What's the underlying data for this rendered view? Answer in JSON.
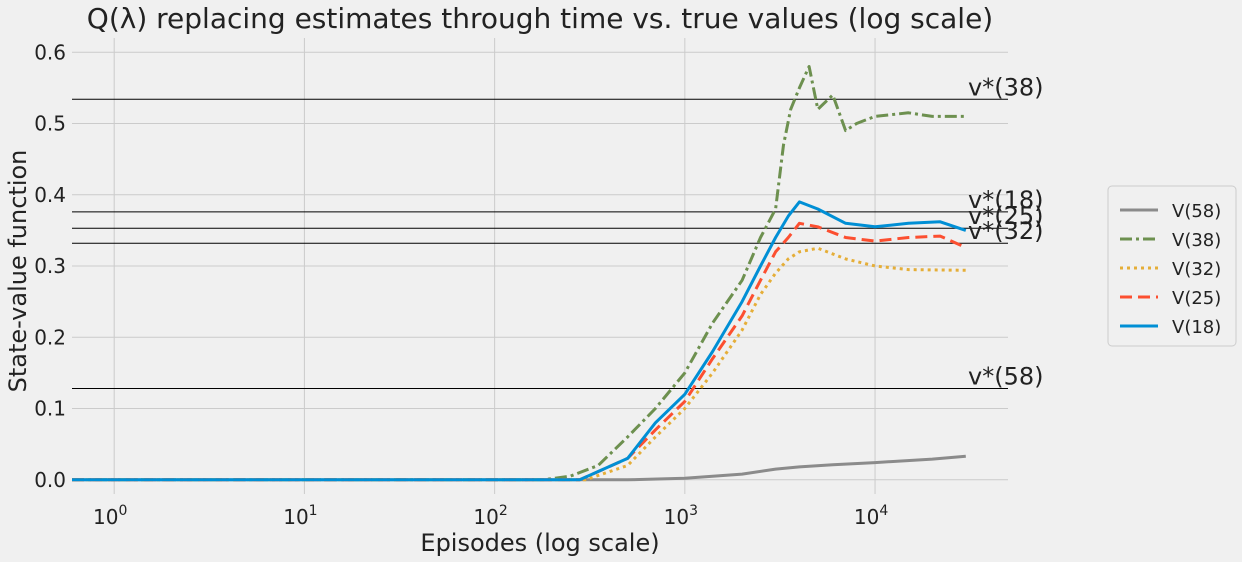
{
  "chart_data": {
    "type": "line",
    "title": "Q(λ) replacing estimates through time vs. true values (log scale)",
    "xlabel": "Episodes (log scale)",
    "ylabel": "State-value function",
    "xscale": "log",
    "xlim": [
      0.6,
      50000
    ],
    "ylim": [
      -0.02,
      0.62
    ],
    "grid": true,
    "legend_position": "right",
    "x_ticks": [
      {
        "base": "10",
        "exp": "0",
        "value": 1
      },
      {
        "base": "10",
        "exp": "1",
        "value": 10
      },
      {
        "base": "10",
        "exp": "2",
        "value": 100
      },
      {
        "base": "10",
        "exp": "3",
        "value": 1000
      },
      {
        "base": "10",
        "exp": "4",
        "value": 10000
      }
    ],
    "y_ticks": [
      "0.0",
      "0.1",
      "0.2",
      "0.3",
      "0.4",
      "0.5",
      "0.6"
    ],
    "reference_lines": [
      {
        "label": "v*(38)",
        "value": 0.534
      },
      {
        "label": "v*(18)",
        "value": 0.376
      },
      {
        "label": "v*(25)",
        "value": 0.353
      },
      {
        "label": "v*(32)",
        "value": 0.332
      },
      {
        "label": "v*(58)",
        "value": 0.128
      }
    ],
    "series": [
      {
        "name": "V(58)",
        "color": "#8b8b8b",
        "dash": "solid",
        "points": [
          [
            0.6,
            0
          ],
          [
            100,
            0
          ],
          [
            500,
            0
          ],
          [
            1000,
            0.002
          ],
          [
            2000,
            0.008
          ],
          [
            3000,
            0.015
          ],
          [
            4000,
            0.018
          ],
          [
            6000,
            0.021
          ],
          [
            10000,
            0.024
          ],
          [
            20000,
            0.029
          ],
          [
            30000,
            0.033
          ]
        ]
      },
      {
        "name": "V(38)",
        "color": "#6d904f",
        "dash": "dashdot",
        "points": [
          [
            0.6,
            0
          ],
          [
            180,
            0
          ],
          [
            250,
            0.005
          ],
          [
            350,
            0.02
          ],
          [
            500,
            0.06
          ],
          [
            700,
            0.1
          ],
          [
            1000,
            0.15
          ],
          [
            1400,
            0.22
          ],
          [
            2000,
            0.28
          ],
          [
            2500,
            0.34
          ],
          [
            3000,
            0.38
          ],
          [
            3300,
            0.47
          ],
          [
            3600,
            0.52
          ],
          [
            4000,
            0.55
          ],
          [
            4500,
            0.58
          ],
          [
            5000,
            0.52
          ],
          [
            6000,
            0.54
          ],
          [
            7000,
            0.49
          ],
          [
            8000,
            0.5
          ],
          [
            10000,
            0.51
          ],
          [
            15000,
            0.515
          ],
          [
            20000,
            0.51
          ],
          [
            30000,
            0.51
          ]
        ]
      },
      {
        "name": "V(32)",
        "color": "#e5ae38",
        "dash": "dotted",
        "points": [
          [
            0.6,
            0
          ],
          [
            300,
            0
          ],
          [
            500,
            0.02
          ],
          [
            700,
            0.06
          ],
          [
            1000,
            0.1
          ],
          [
            1400,
            0.15
          ],
          [
            2000,
            0.21
          ],
          [
            2500,
            0.26
          ],
          [
            3000,
            0.29
          ],
          [
            3500,
            0.31
          ],
          [
            4000,
            0.32
          ],
          [
            5000,
            0.325
          ],
          [
            7000,
            0.31
          ],
          [
            10000,
            0.3
          ],
          [
            15000,
            0.295
          ],
          [
            30000,
            0.294
          ]
        ]
      },
      {
        "name": "V(25)",
        "color": "#fc4f30",
        "dash": "dashed",
        "points": [
          [
            0.6,
            0
          ],
          [
            280,
            0
          ],
          [
            500,
            0.03
          ],
          [
            700,
            0.07
          ],
          [
            1000,
            0.11
          ],
          [
            1400,
            0.17
          ],
          [
            2000,
            0.23
          ],
          [
            2500,
            0.28
          ],
          [
            3000,
            0.32
          ],
          [
            3500,
            0.34
          ],
          [
            4000,
            0.36
          ],
          [
            5000,
            0.355
          ],
          [
            7000,
            0.34
          ],
          [
            10000,
            0.335
          ],
          [
            15000,
            0.34
          ],
          [
            22000,
            0.342
          ],
          [
            30000,
            0.326
          ]
        ]
      },
      {
        "name": "V(18)",
        "color": "#008fd5",
        "dash": "solid",
        "points": [
          [
            0.6,
            0
          ],
          [
            280,
            0
          ],
          [
            500,
            0.03
          ],
          [
            700,
            0.08
          ],
          [
            1000,
            0.12
          ],
          [
            1400,
            0.18
          ],
          [
            2000,
            0.25
          ],
          [
            2500,
            0.3
          ],
          [
            3000,
            0.34
          ],
          [
            3500,
            0.37
          ],
          [
            4000,
            0.39
          ],
          [
            5000,
            0.38
          ],
          [
            7000,
            0.36
          ],
          [
            10000,
            0.355
          ],
          [
            15000,
            0.36
          ],
          [
            22000,
            0.362
          ],
          [
            30000,
            0.35
          ]
        ]
      }
    ]
  }
}
